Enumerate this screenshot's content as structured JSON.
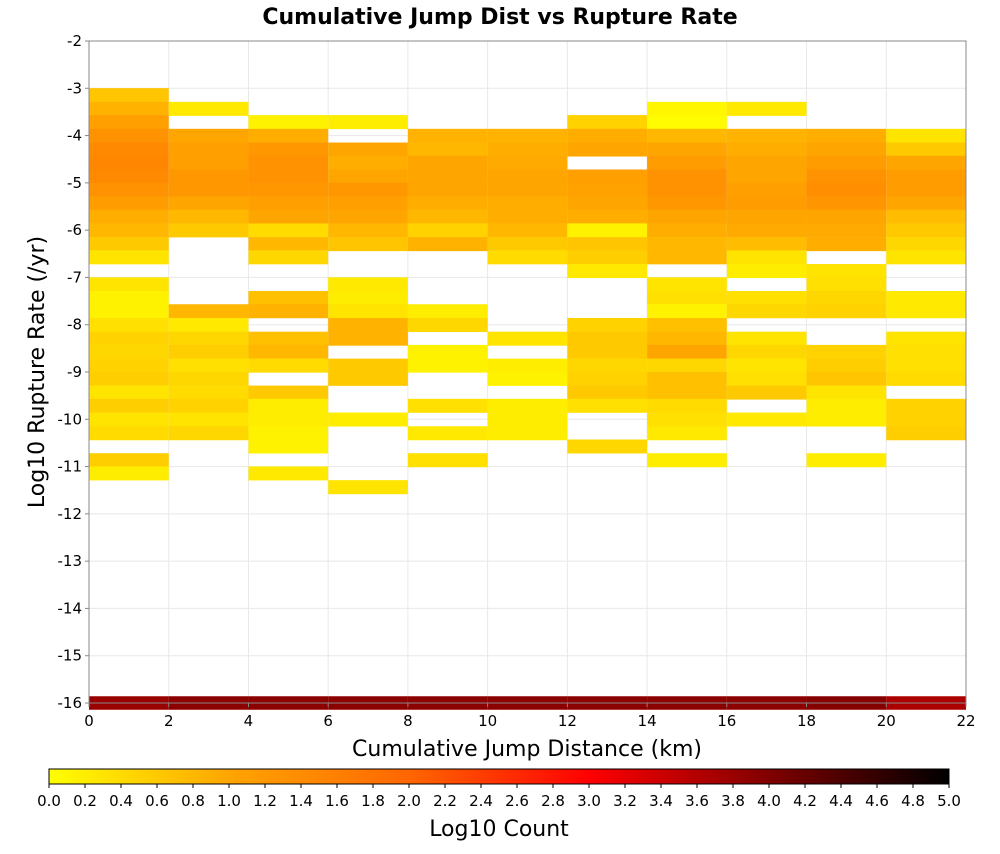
{
  "chart_data": {
    "type": "heatmap",
    "title": "Cumulative Jump Dist vs Rupture Rate",
    "xlabel": "Cumulative Jump Distance (km)",
    "ylabel": "Log10 Rupture Rate (/yr)",
    "xlim": [
      0,
      22
    ],
    "ylim": [
      -16,
      -2
    ],
    "x_ticks": [
      "0",
      "2",
      "4",
      "6",
      "8",
      "10",
      "12",
      "14",
      "16",
      "18",
      "20",
      "22"
    ],
    "y_ticks": [
      "-2",
      "-3",
      "-4",
      "-5",
      "-6",
      "-7",
      "-8",
      "-9",
      "-10",
      "-11",
      "-12",
      "-13",
      "-14",
      "-15",
      "-16"
    ],
    "x_bin_width": 2,
    "y_bin_height": 0.2857,
    "colorbar": {
      "label": "Log10 Count",
      "range": [
        0,
        5
      ],
      "ticks": [
        "0.0",
        "0.2",
        "0.4",
        "0.6",
        "0.8",
        "1.0",
        "1.2",
        "1.4",
        "1.6",
        "1.8",
        "2.0",
        "2.2",
        "2.4",
        "2.6",
        "2.8",
        "3.0",
        "3.2",
        "3.4",
        "3.6",
        "3.8",
        "4.0",
        "4.2",
        "4.4",
        "4.6",
        "4.8",
        "5.0"
      ],
      "colors": [
        "#ffff00",
        "#ffa500",
        "#ff6600",
        "#ff0000",
        "#800000",
        "#000000"
      ]
    },
    "grid": true,
    "cells_note_columns_by_x_bin_start": {
      "0": [
        [
          -3.14,
          0.65
        ],
        [
          -3.43,
          0.85
        ],
        [
          -3.71,
          1.1
        ],
        [
          -4.0,
          1.3
        ],
        [
          -4.29,
          1.45
        ],
        [
          -4.57,
          1.5
        ],
        [
          -4.86,
          1.45
        ],
        [
          -5.14,
          1.3
        ],
        [
          -5.43,
          1.15
        ],
        [
          -5.71,
          0.9
        ],
        [
          -6.0,
          0.8
        ],
        [
          -6.29,
          0.6
        ],
        [
          -6.57,
          0.3
        ],
        [
          -7.14,
          0.3
        ],
        [
          -7.43,
          0.15
        ],
        [
          -7.71,
          0.15
        ],
        [
          -8.0,
          0.35
        ],
        [
          -8.29,
          0.5
        ],
        [
          -8.57,
          0.45
        ],
        [
          -8.86,
          0.5
        ],
        [
          -9.14,
          0.55
        ],
        [
          -9.43,
          0.3
        ],
        [
          -9.71,
          0.55
        ],
        [
          -10.0,
          0.3
        ],
        [
          -10.29,
          0.4
        ],
        [
          -10.86,
          0.55
        ],
        [
          -11.14,
          0.2
        ]
      ],
      "2": [
        [
          -3.43,
          0.25
        ],
        [
          -4.0,
          1.0
        ],
        [
          -4.29,
          1.1
        ],
        [
          -4.57,
          1.1
        ],
        [
          -4.86,
          1.2
        ],
        [
          -5.14,
          1.2
        ],
        [
          -5.43,
          1.0
        ],
        [
          -5.71,
          0.8
        ],
        [
          -6.0,
          0.6
        ],
        [
          -7.71,
          0.8
        ],
        [
          -8.0,
          0.25
        ],
        [
          -8.29,
          0.45
        ],
        [
          -8.57,
          0.55
        ],
        [
          -8.86,
          0.35
        ],
        [
          -9.14,
          0.45
        ],
        [
          -9.43,
          0.4
        ],
        [
          -9.71,
          0.5
        ],
        [
          -10.0,
          0.3
        ],
        [
          -10.29,
          0.45
        ]
      ],
      "4": [
        [
          -3.71,
          0.15
        ],
        [
          -4.0,
          0.9
        ],
        [
          -4.29,
          1.2
        ],
        [
          -4.57,
          1.3
        ],
        [
          -4.86,
          1.3
        ],
        [
          -5.14,
          1.2
        ],
        [
          -5.43,
          1.1
        ],
        [
          -5.71,
          1.0
        ],
        [
          -6.0,
          0.4
        ],
        [
          -6.29,
          0.8
        ],
        [
          -6.57,
          0.45
        ],
        [
          -7.43,
          0.7
        ],
        [
          -7.71,
          0.85
        ],
        [
          -8.29,
          0.7
        ],
        [
          -8.57,
          0.8
        ],
        [
          -8.86,
          0.4
        ],
        [
          -9.43,
          0.6
        ],
        [
          -9.71,
          0.2
        ],
        [
          -10.0,
          0.2
        ],
        [
          -10.29,
          0.15
        ],
        [
          -10.57,
          0.15
        ],
        [
          -11.14,
          0.25
        ]
      ],
      "6": [
        [
          -3.71,
          0.2
        ],
        [
          -4.29,
          1.0
        ],
        [
          -4.57,
          0.9
        ],
        [
          -4.86,
          1.0
        ],
        [
          -5.14,
          1.2
        ],
        [
          -5.43,
          1.1
        ],
        [
          -5.71,
          1.0
        ],
        [
          -6.0,
          0.8
        ],
        [
          -6.29,
          0.65
        ],
        [
          -7.14,
          0.25
        ],
        [
          -7.43,
          0.2
        ],
        [
          -7.71,
          0.3
        ],
        [
          -8.0,
          0.85
        ],
        [
          -8.29,
          0.85
        ],
        [
          -8.86,
          0.6
        ],
        [
          -9.14,
          0.6
        ],
        [
          -10.0,
          0.2
        ],
        [
          -11.43,
          0.3
        ]
      ],
      "8": [
        [
          -4.0,
          0.85
        ],
        [
          -4.29,
          0.8
        ],
        [
          -4.57,
          1.0
        ],
        [
          -4.86,
          1.0
        ],
        [
          -5.14,
          1.0
        ],
        [
          -5.43,
          0.9
        ],
        [
          -5.71,
          0.8
        ],
        [
          -6.0,
          0.5
        ],
        [
          -6.29,
          0.85
        ],
        [
          -7.71,
          0.2
        ],
        [
          -8.0,
          0.45
        ],
        [
          -8.57,
          0.15
        ],
        [
          -8.86,
          0.15
        ],
        [
          -9.71,
          0.35
        ],
        [
          -10.29,
          0.25
        ],
        [
          -10.86,
          0.35
        ]
      ],
      "10": [
        [
          -4.0,
          0.85
        ],
        [
          -4.29,
          0.9
        ],
        [
          -4.57,
          0.95
        ],
        [
          -4.86,
          1.0
        ],
        [
          -5.14,
          1.0
        ],
        [
          -5.43,
          0.9
        ],
        [
          -5.71,
          0.9
        ],
        [
          -6.0,
          0.8
        ],
        [
          -6.29,
          0.6
        ],
        [
          -6.57,
          0.4
        ],
        [
          -8.29,
          0.3
        ],
        [
          -8.86,
          0.2
        ],
        [
          -9.14,
          0.15
        ],
        [
          -9.71,
          0.2
        ],
        [
          -10.0,
          0.2
        ],
        [
          -10.29,
          0.2
        ]
      ],
      "12": [
        [
          -3.71,
          0.5
        ],
        [
          -4.0,
          0.9
        ],
        [
          -4.29,
          1.0
        ],
        [
          -4.86,
          1.1
        ],
        [
          -5.14,
          1.05
        ],
        [
          -5.43,
          1.0
        ],
        [
          -5.71,
          0.9
        ],
        [
          -6.0,
          0.15
        ],
        [
          -6.29,
          0.65
        ],
        [
          -6.57,
          0.55
        ],
        [
          -6.86,
          0.25
        ],
        [
          -8.0,
          0.5
        ],
        [
          -8.29,
          0.6
        ],
        [
          -8.57,
          0.6
        ],
        [
          -8.86,
          0.45
        ],
        [
          -9.14,
          0.5
        ],
        [
          -9.43,
          0.6
        ],
        [
          -9.71,
          0.35
        ],
        [
          -10.57,
          0.45
        ]
      ],
      "14": [
        [
          -3.43,
          0.1
        ],
        [
          -3.71,
          0.05
        ],
        [
          -4.0,
          0.8
        ],
        [
          -4.29,
          1.0
        ],
        [
          -4.57,
          1.15
        ],
        [
          -4.86,
          1.3
        ],
        [
          -5.14,
          1.3
        ],
        [
          -5.43,
          1.2
        ],
        [
          -5.71,
          1.0
        ],
        [
          -6.0,
          0.9
        ],
        [
          -6.29,
          0.8
        ],
        [
          -6.57,
          0.8
        ],
        [
          -7.14,
          0.3
        ],
        [
          -7.43,
          0.35
        ],
        [
          -7.71,
          0.15
        ],
        [
          -8.0,
          0.7
        ],
        [
          -8.29,
          0.8
        ],
        [
          -8.57,
          1.0
        ],
        [
          -8.86,
          0.45
        ],
        [
          -9.14,
          0.7
        ],
        [
          -9.43,
          0.7
        ],
        [
          -9.71,
          0.4
        ],
        [
          -10.0,
          0.35
        ],
        [
          -10.29,
          0.25
        ],
        [
          -10.86,
          0.2
        ]
      ],
      "16": [
        [
          -3.43,
          0.25
        ],
        [
          -4.0,
          0.85
        ],
        [
          -4.29,
          0.9
        ],
        [
          -4.57,
          1.0
        ],
        [
          -4.86,
          1.0
        ],
        [
          -5.14,
          1.1
        ],
        [
          -5.43,
          1.15
        ],
        [
          -5.71,
          1.0
        ],
        [
          -6.0,
          0.95
        ],
        [
          -6.29,
          0.75
        ],
        [
          -6.57,
          0.3
        ],
        [
          -6.86,
          0.2
        ],
        [
          -7.43,
          0.35
        ],
        [
          -7.71,
          0.45
        ],
        [
          -8.29,
          0.3
        ],
        [
          -8.57,
          0.45
        ],
        [
          -8.86,
          0.3
        ],
        [
          -9.14,
          0.35
        ],
        [
          -9.43,
          0.6
        ],
        [
          -10.0,
          0.25
        ]
      ],
      "18": [
        [
          -4.0,
          0.9
        ],
        [
          -4.29,
          1.0
        ],
        [
          -4.57,
          1.15
        ],
        [
          -4.86,
          1.3
        ],
        [
          -5.14,
          1.35
        ],
        [
          -5.43,
          1.25
        ],
        [
          -5.71,
          1.0
        ],
        [
          -6.0,
          0.95
        ],
        [
          -6.29,
          0.9
        ],
        [
          -6.86,
          0.3
        ],
        [
          -7.14,
          0.35
        ],
        [
          -7.43,
          0.45
        ],
        [
          -7.71,
          0.5
        ],
        [
          -8.57,
          0.5
        ],
        [
          -8.86,
          0.55
        ],
        [
          -9.14,
          0.65
        ],
        [
          -9.43,
          0.3
        ],
        [
          -9.71,
          0.2
        ],
        [
          -10.0,
          0.2
        ],
        [
          -10.86,
          0.2
        ]
      ],
      "20": [
        [
          -4.0,
          0.3
        ],
        [
          -4.29,
          0.6
        ],
        [
          -4.57,
          1.0
        ],
        [
          -4.86,
          1.15
        ],
        [
          -5.14,
          1.15
        ],
        [
          -5.43,
          1.0
        ],
        [
          -5.71,
          0.75
        ],
        [
          -6.0,
          0.6
        ],
        [
          -6.29,
          0.45
        ],
        [
          -6.57,
          0.3
        ],
        [
          -7.43,
          0.25
        ],
        [
          -7.71,
          0.25
        ],
        [
          -8.29,
          0.3
        ],
        [
          -8.57,
          0.35
        ],
        [
          -8.86,
          0.35
        ],
        [
          -9.14,
          0.4
        ],
        [
          -9.71,
          0.5
        ],
        [
          -10.0,
          0.5
        ],
        [
          -10.29,
          0.55
        ]
      ]
    },
    "bottom_row": {
      "y": -16,
      "values": [
        3.8,
        3.9,
        3.9,
        3.9,
        3.9,
        3.9,
        3.9,
        3.9,
        3.9,
        3.95,
        3.65
      ]
    }
  }
}
